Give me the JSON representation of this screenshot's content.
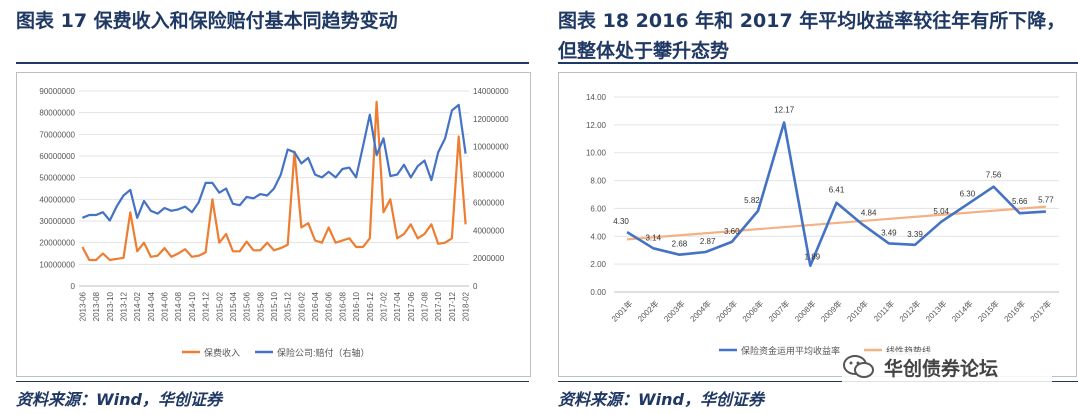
{
  "left": {
    "title": "图表 17  保费收入和保险赔付基本同趋势变动",
    "source": "资料来源：Wind，华创证券",
    "chart_data": {
      "type": "line",
      "categories": [
        "2013-06",
        "2013-08",
        "2013-10",
        "2013-12",
        "2014-02",
        "2014-04",
        "2014-06",
        "2014-08",
        "2014-10",
        "2014-12",
        "2015-02",
        "2015-04",
        "2015-06",
        "2015-08",
        "2015-10",
        "2015-12",
        "2016-02",
        "2016-04",
        "2016-06",
        "2016-08",
        "2016-10",
        "2016-12",
        "2017-02",
        "2017-04",
        "2017-06",
        "2017-08",
        "2017-10",
        "2017-12",
        "2018-02"
      ],
      "x": [
        "2013-06",
        "2013-07",
        "2013-08",
        "2013-09",
        "2013-10",
        "2013-11",
        "2013-12",
        "2014-01",
        "2014-02",
        "2014-03",
        "2014-04",
        "2014-05",
        "2014-06",
        "2014-07",
        "2014-08",
        "2014-09",
        "2014-10",
        "2014-11",
        "2014-12",
        "2015-01",
        "2015-02",
        "2015-03",
        "2015-04",
        "2015-05",
        "2015-06",
        "2015-07",
        "2015-08",
        "2015-09",
        "2015-10",
        "2015-11",
        "2015-12",
        "2016-01",
        "2016-02",
        "2016-03",
        "2016-04",
        "2016-05",
        "2016-06",
        "2016-07",
        "2016-08",
        "2016-09",
        "2016-10",
        "2016-11",
        "2016-12",
        "2017-01",
        "2017-02",
        "2017-03",
        "2017-04",
        "2017-05",
        "2017-06",
        "2017-07",
        "2017-08",
        "2017-09",
        "2017-10",
        "2017-11",
        "2017-12",
        "2018-01",
        "2018-02"
      ],
      "yticks_left": [
        "0",
        "10000000",
        "20000000",
        "30000000",
        "40000000",
        "50000000",
        "60000000",
        "70000000",
        "80000000",
        "90000000"
      ],
      "yticks_right": [
        "0",
        "2000000",
        "4000000",
        "6000000",
        "8000000",
        "10000000",
        "12000000",
        "14000000"
      ],
      "ylim_left": [
        0,
        90000000
      ],
      "ylim_right": [
        0,
        14000000
      ],
      "legend_position": "bottom",
      "series": [
        {
          "name": "保费收入",
          "axis": "left",
          "color": "#ed7d31",
          "values": [
            18000000,
            12000000,
            12000000,
            15000000,
            12000000,
            12500000,
            13000000,
            34000000,
            16000000,
            20000000,
            13500000,
            14000000,
            17500000,
            13500000,
            15000000,
            17000000,
            13500000,
            14000000,
            15500000,
            40000000,
            20000000,
            24000000,
            16000000,
            16000000,
            20500000,
            16500000,
            16500000,
            20000000,
            16500000,
            17500000,
            19000000,
            62000000,
            27000000,
            29000000,
            21000000,
            20000000,
            27000000,
            20000000,
            21000000,
            22000000,
            18000000,
            18000000,
            22000000,
            85000000,
            34000000,
            40000000,
            22000000,
            24000000,
            28500000,
            22000000,
            24000000,
            28500000,
            19500000,
            20000000,
            22000000,
            69000000,
            28500000
          ]
        },
        {
          "name": "保险公司:赔付（右轴）",
          "axis": "right",
          "color": "#4472c4",
          "values": [
            4900000,
            5100000,
            5100000,
            5300000,
            4700000,
            5700000,
            6500000,
            6900000,
            4900000,
            6100000,
            5400000,
            5200000,
            5600000,
            5400000,
            5500000,
            5700000,
            5300000,
            6000000,
            7400000,
            7400000,
            6700000,
            7000000,
            5900000,
            5800000,
            6400000,
            6300000,
            6600000,
            6500000,
            7000000,
            8000000,
            9800000,
            9600000,
            8800000,
            9200000,
            8000000,
            7800000,
            8200000,
            7800000,
            8400000,
            8500000,
            7800000,
            10000000,
            12300000,
            9400000,
            10600000,
            7900000,
            8000000,
            8700000,
            7800000,
            8600000,
            9000000,
            7600000,
            9600000,
            10600000,
            12600000,
            13000000,
            9500000
          ]
        }
      ]
    }
  },
  "right": {
    "title_line1": "图表 18 2016 年和 2017 年平均收益率较往年有所下降，",
    "title_line2": "但整体处于攀升态势",
    "source": "资料来源：Wind，华创证券",
    "watermark": "华创债券论坛",
    "chart_data": {
      "type": "line",
      "categories": [
        "2001年",
        "2002年",
        "2003年",
        "2004年",
        "2005年",
        "2006年",
        "2007年",
        "2008年",
        "2009年",
        "2010年",
        "2011年",
        "2012年",
        "2013年",
        "2014年",
        "2015年",
        "2016年",
        "2017年"
      ],
      "yticks": [
        "0.00",
        "2.00",
        "4.00",
        "6.00",
        "8.00",
        "10.00",
        "12.00",
        "14.00"
      ],
      "ylim": [
        0,
        14
      ],
      "legend_position": "bottom",
      "series": [
        {
          "name": "保险资金运用平均收益率",
          "color": "#4472c4",
          "values": [
            4.3,
            3.14,
            2.68,
            2.87,
            3.6,
            5.82,
            12.17,
            1.89,
            6.41,
            4.84,
            3.49,
            3.39,
            5.04,
            6.3,
            7.56,
            5.66,
            5.77
          ],
          "labels": [
            "4.30",
            "3.14",
            "2.68",
            "2.87",
            "3.60",
            "5.82",
            "12.17",
            "1.89",
            "6.41",
            "4.84",
            "3.49",
            "3.39",
            "5.04",
            "6.30",
            "7.56",
            "5.66",
            "5.77"
          ]
        },
        {
          "name": "线性趋势线",
          "color": "#f4b183",
          "trend_start": 3.78,
          "trend_end": 6.13
        }
      ]
    }
  }
}
